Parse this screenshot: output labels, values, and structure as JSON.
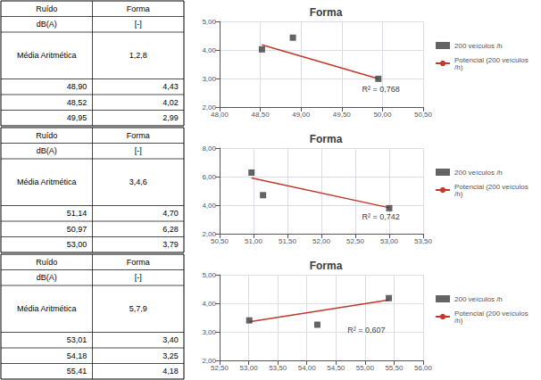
{
  "chart_data": [
    {
      "type": "table",
      "header": [
        [
          "Ruído",
          "Forma"
        ],
        [
          "dB(A)",
          "[-]"
        ]
      ],
      "mean": [
        "Média Aritmética",
        "1,2,8"
      ],
      "rows": [
        [
          "48,90",
          "4,43"
        ],
        [
          "48,52",
          "4,02"
        ],
        [
          "49,95",
          "2,99"
        ]
      ]
    },
    {
      "type": "scatter",
      "title": "Forma",
      "xlim": [
        48.0,
        50.5
      ],
      "xticks": [
        {
          "value": 48.0,
          "label": "48,00"
        },
        {
          "value": 48.5,
          "label": "48,50"
        },
        {
          "value": 49.0,
          "label": "49,00"
        },
        {
          "value": 49.5,
          "label": "49,50"
        },
        {
          "value": 50.0,
          "label": "50,00"
        },
        {
          "value": 50.5,
          "label": "50,50"
        }
      ],
      "ylim": [
        2.0,
        5.0
      ],
      "yticks": [
        {
          "value": 2.0,
          "label": "2,00"
        },
        {
          "value": 3.0,
          "label": "3,00"
        },
        {
          "value": 4.0,
          "label": "4,00"
        },
        {
          "value": 5.0,
          "label": "5,00"
        }
      ],
      "series": [
        {
          "name": "200 veículos /h",
          "type": "scatter",
          "marker": "square",
          "color": "#3d3d3d",
          "x": [
            48.9,
            48.52,
            49.95
          ],
          "values": [
            4.43,
            4.02,
            2.99
          ]
        },
        {
          "name": "Potencial (200 veículos\n/h)",
          "type": "line",
          "color": "#c0392b",
          "x": [
            48.52,
            49.95
          ],
          "values": [
            4.18,
            2.99
          ]
        }
      ],
      "annotations": [
        {
          "text": "R² = 0,768",
          "x": 49.75,
          "y": 2.62
        }
      ],
      "grid": true,
      "legend": "right"
    },
    {
      "type": "table",
      "header": [
        [
          "Ruído",
          "Forma"
        ],
        [
          "dB(A)",
          "[-]"
        ]
      ],
      "mean": [
        "Média Aritmética",
        "3,4,6"
      ],
      "rows": [
        [
          "51,14",
          "4,70"
        ],
        [
          "50,97",
          "6,28"
        ],
        [
          "53,00",
          "3,79"
        ]
      ]
    },
    {
      "type": "scatter",
      "title": "Forma",
      "xlim": [
        50.5,
        53.5
      ],
      "xticks": [
        {
          "value": 50.5,
          "label": "50,50"
        },
        {
          "value": 51.0,
          "label": "51,00"
        },
        {
          "value": 51.5,
          "label": "51,50"
        },
        {
          "value": 52.0,
          "label": "52,00"
        },
        {
          "value": 52.5,
          "label": "52,50"
        },
        {
          "value": 53.0,
          "label": "53,00"
        },
        {
          "value": 53.5,
          "label": "53,50"
        }
      ],
      "ylim": [
        2.0,
        8.0
      ],
      "yticks": [
        {
          "value": 2.0,
          "label": "2,00"
        },
        {
          "value": 4.0,
          "label": "4,00"
        },
        {
          "value": 6.0,
          "label": "6,00"
        },
        {
          "value": 8.0,
          "label": "8,00"
        }
      ],
      "series": [
        {
          "name": "200 veículos /h",
          "type": "scatter",
          "marker": "square",
          "color": "#3d3d3d",
          "x": [
            51.14,
            50.97,
            53.0
          ],
          "values": [
            4.7,
            6.28,
            3.79
          ]
        },
        {
          "name": "Potencial (200 veículos\n/h)",
          "type": "line",
          "color": "#c0392b",
          "x": [
            50.97,
            53.0
          ],
          "values": [
            5.9,
            3.82
          ]
        }
      ],
      "annotations": [
        {
          "text": "R² = 0,742",
          "x": 52.6,
          "y": 3.2
        }
      ],
      "grid": true,
      "legend": "right"
    },
    {
      "type": "table",
      "header": [
        [
          "Ruído",
          "Forma"
        ],
        [
          "dB(A)",
          "[-]"
        ]
      ],
      "mean": [
        "Média Aritmética",
        "5,7,9"
      ],
      "rows": [
        [
          "53,01",
          "3,40"
        ],
        [
          "54,18",
          "3,25"
        ],
        [
          "55,41",
          "4,18"
        ]
      ]
    },
    {
      "type": "scatter",
      "title": "Forma",
      "xlim": [
        52.5,
        56.0
      ],
      "xticks": [
        {
          "value": 52.5,
          "label": "52,50"
        },
        {
          "value": 53.0,
          "label": "53,00"
        },
        {
          "value": 53.5,
          "label": "53,50"
        },
        {
          "value": 54.0,
          "label": "54,00"
        },
        {
          "value": 54.5,
          "label": "54,50"
        },
        {
          "value": 55.0,
          "label": "55,00"
        },
        {
          "value": 55.5,
          "label": "55,50"
        },
        {
          "value": 56.0,
          "label": "56,00"
        }
      ],
      "ylim": [
        2.0,
        5.0
      ],
      "yticks": [
        {
          "value": 2.0,
          "label": "2,00"
        },
        {
          "value": 3.0,
          "label": "3,00"
        },
        {
          "value": 4.0,
          "label": "4,00"
        },
        {
          "value": 5.0,
          "label": "5,00"
        }
      ],
      "series": [
        {
          "name": "200 veículos /h",
          "type": "scatter",
          "marker": "square",
          "color": "#3d3d3d",
          "x": [
            53.01,
            54.18,
            55.41
          ],
          "values": [
            3.4,
            3.25,
            4.18
          ]
        },
        {
          "name": "Potencial (200 veículos\n/h)",
          "type": "line",
          "color": "#c0392b",
          "x": [
            53.01,
            55.41
          ],
          "values": [
            3.35,
            4.12
          ]
        }
      ],
      "annotations": [
        {
          "text": "R² = 0,607",
          "x": 54.7,
          "y": 3.05
        }
      ],
      "grid": true,
      "legend": "right"
    }
  ]
}
